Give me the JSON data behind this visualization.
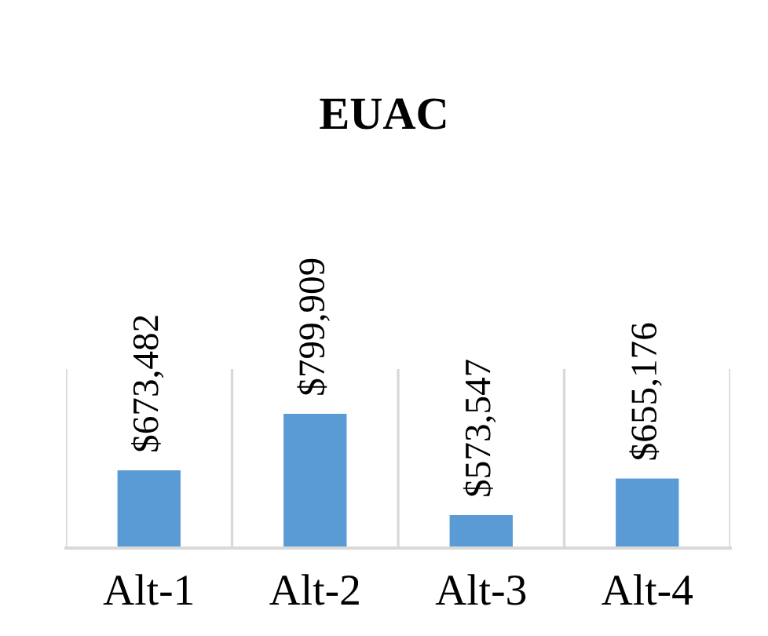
{
  "chart_data": {
    "type": "bar",
    "title": "EUAC",
    "categories": [
      "Alt-1",
      "Alt-2",
      "Alt-3",
      "Alt-4"
    ],
    "values": [
      673482,
      799909,
      573547,
      655176
    ],
    "value_labels": [
      "$673,482",
      "$799,909",
      "$573,547",
      "$655,176"
    ],
    "color": "#5b9bd5",
    "ylim": [
      500000,
      900000
    ],
    "grid": "x",
    "tick_labels": "x"
  }
}
